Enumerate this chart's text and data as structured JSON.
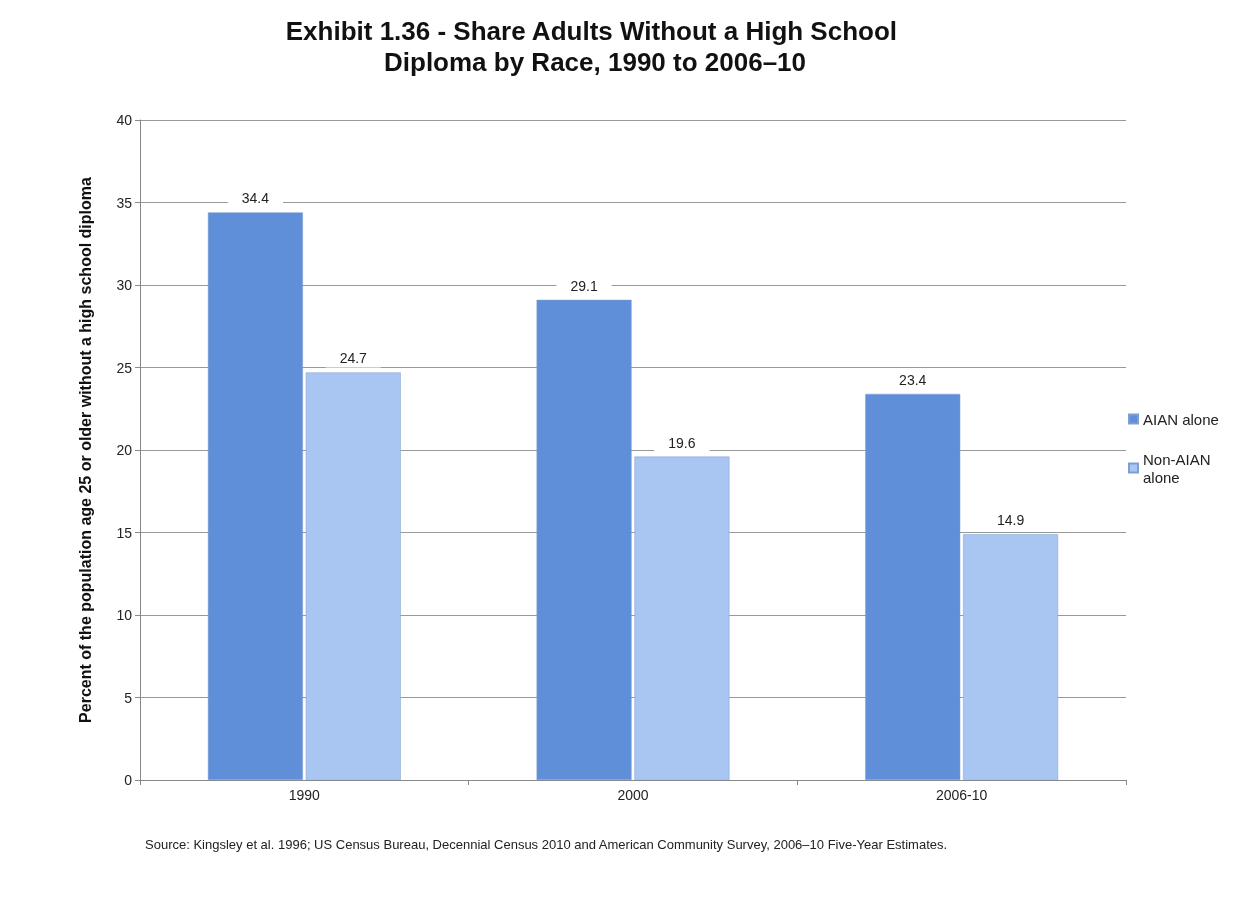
{
  "chart_data": {
    "type": "bar",
    "title": "Exhibit 1.36 - Share Adults Without a High School Diploma by Race, 1990 to 2006–10",
    "ylabel": "Percent of the population age 25 or older without a high school diploma",
    "categories": [
      "1990",
      "2000",
      "2006-10"
    ],
    "series": [
      {
        "name": "AIAN alone",
        "color": "#5f8fd8",
        "values": [
          34.4,
          29.1,
          23.4
        ]
      },
      {
        "name": "Non-AIAN alone",
        "color": "#a9c5f2",
        "values": [
          24.7,
          19.6,
          14.9
        ]
      }
    ],
    "ylim": [
      0,
      40
    ],
    "yticks": [
      0,
      5,
      10,
      15,
      20,
      25,
      30,
      35,
      40
    ],
    "grid": "y",
    "legend": "right",
    "data_labels": true,
    "annotations": [
      "Source: Kingsley et al. 1996; US Census Bureau, Decennial Census 2010 and American Community Survey, 2006–10 Five-Year Estimates."
    ]
  }
}
